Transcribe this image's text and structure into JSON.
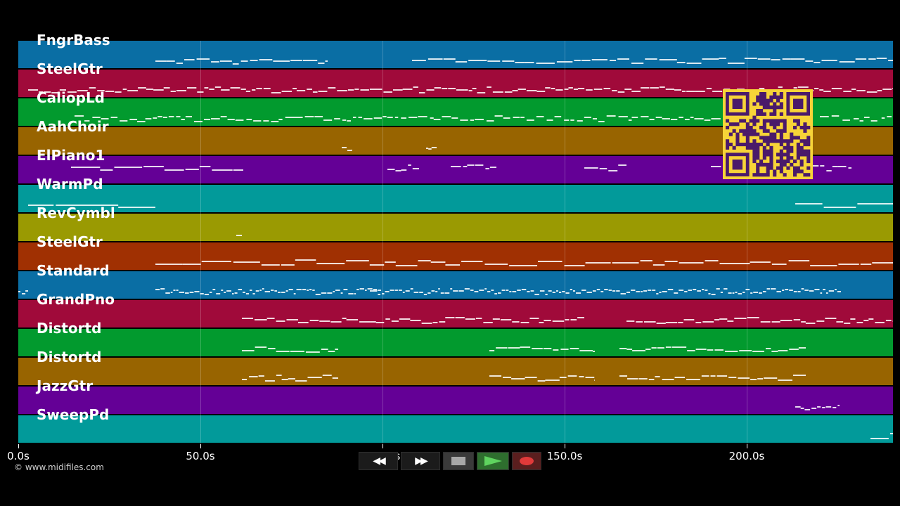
{
  "tracks": [
    {
      "name": "FngrBass",
      "color": "#0a6ea4"
    },
    {
      "name": "SteelGtr",
      "color": "#a00a3a"
    },
    {
      "name": "CaliopLd",
      "color": "#029a2e"
    },
    {
      "name": "AahChoir",
      "color": "#986400"
    },
    {
      "name": "ElPiano1",
      "color": "#640096"
    },
    {
      "name": "WarmPd",
      "color": "#029a9a"
    },
    {
      "name": "RevCymbl",
      "color": "#9a9a02"
    },
    {
      "name": "SteelGtr",
      "color": "#a03002"
    },
    {
      "name": "Standard",
      "color": "#0a6ea4"
    },
    {
      "name": "GrandPno",
      "color": "#a00a3a"
    },
    {
      "name": "Distortd",
      "color": "#029a2e"
    },
    {
      "name": "Distortd",
      "color": "#986400"
    },
    {
      "name": "JazzGtr",
      "color": "#640096"
    },
    {
      "name": "SweepPd",
      "color": "#029a9a"
    }
  ],
  "timeline": {
    "ticks": [
      "0.0s",
      "50.0s",
      "100.0s",
      "150.0s",
      "200.0s"
    ]
  },
  "copyright": "© www.midifiles.com",
  "controls": {
    "rewind": "◀◀",
    "forward": "▶▶"
  },
  "colors": {
    "background": "#000000",
    "qr_background": "#f7d438",
    "qr_module": "#4a1a6a"
  }
}
